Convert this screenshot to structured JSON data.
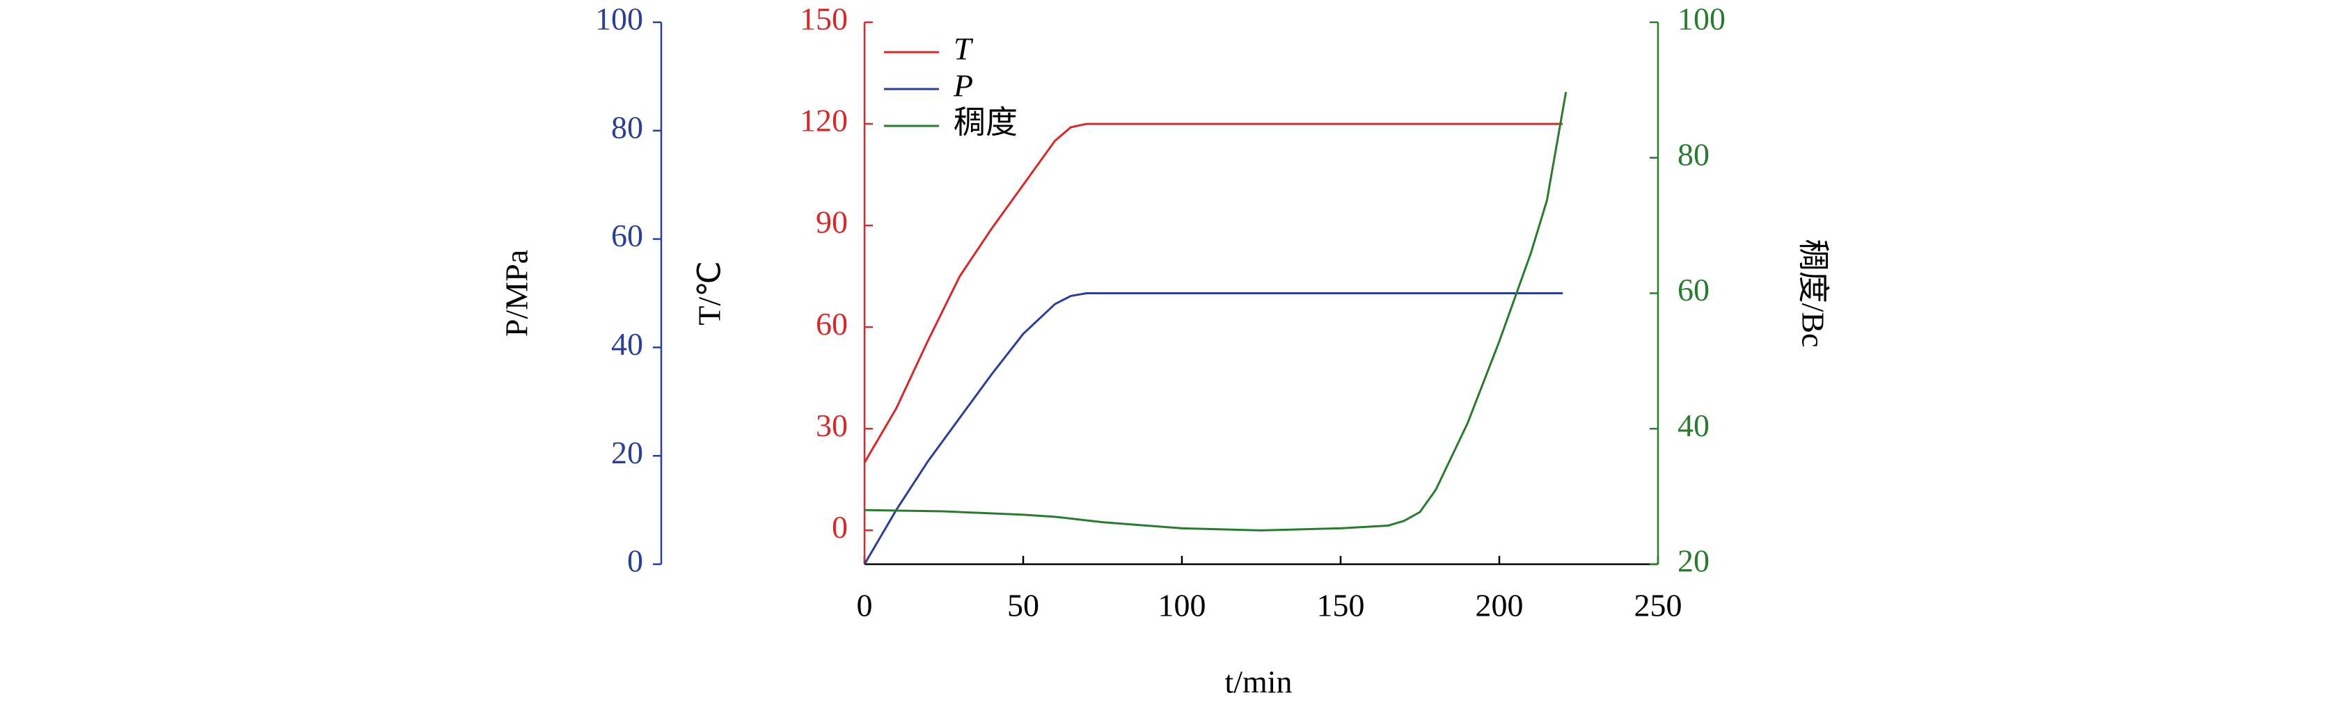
{
  "chart_data": {
    "type": "line",
    "xlabel": "t/min",
    "ylabel": "T/℃",
    "y2label": "P/MPa",
    "y3label": "稠度/Bc",
    "xlim": [
      0,
      250
    ],
    "xticks": [
      0,
      50,
      100,
      150,
      200,
      250
    ],
    "ylim": [
      -10,
      150
    ],
    "yticks": [
      0,
      30,
      60,
      90,
      120,
      150
    ],
    "ycolor": "#d42a2a",
    "y2lim": [
      0,
      100
    ],
    "y2ticks": [
      0,
      20,
      40,
      60,
      80,
      100
    ],
    "y2color": "#2b3f94",
    "y3lim": [
      20,
      100
    ],
    "y3ticks": [
      20,
      40,
      60,
      80,
      100
    ],
    "y3color": "#2a7a30",
    "legend": "upper left",
    "series": [
      {
        "name": "T",
        "color": "#d42a2a",
        "axis": "y",
        "x": [
          0,
          10,
          20,
          30,
          40,
          50,
          60,
          65,
          70,
          100,
          150,
          200,
          220
        ],
        "values": [
          20,
          36,
          56,
          75,
          89,
          102,
          115,
          119,
          120,
          120,
          120,
          120,
          120
        ]
      },
      {
        "name": "P",
        "color": "#2b3f94",
        "axis": "y2",
        "x": [
          0,
          10,
          20,
          30,
          40,
          50,
          60,
          65,
          70,
          100,
          150,
          200,
          220
        ],
        "values": [
          0,
          10,
          19,
          27,
          35,
          42.5,
          48,
          49.5,
          50,
          50,
          50,
          50,
          50
        ]
      },
      {
        "name": "稠度",
        "color": "#2a7a30",
        "axis": "y3",
        "x": [
          0,
          25,
          50,
          60,
          75,
          100,
          125,
          150,
          165,
          170,
          175,
          180,
          190,
          200,
          210,
          215,
          221
        ],
        "values": [
          28,
          27.8,
          27.3,
          27,
          26.2,
          25.3,
          25,
          25.3,
          25.7,
          26.4,
          27.7,
          31,
          40.8,
          52.9,
          66,
          73.7,
          89.7
        ]
      }
    ]
  }
}
